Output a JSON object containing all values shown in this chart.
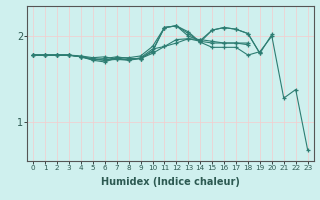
{
  "xlabel": "Humidex (Indice chaleur)",
  "ylabel": "",
  "bg_color": "#cff0ee",
  "grid_color": "#f5cccc",
  "line_color": "#2d7d72",
  "marker": "+",
  "xlim": [
    -0.5,
    23.5
  ],
  "ylim": [
    0.55,
    2.35
  ],
  "yticks": [
    1,
    2
  ],
  "xticks": [
    0,
    1,
    2,
    3,
    4,
    5,
    6,
    7,
    8,
    9,
    10,
    11,
    12,
    13,
    14,
    15,
    16,
    17,
    18,
    19,
    20,
    21,
    22,
    23
  ],
  "lines": [
    [
      1.78,
      1.78,
      1.78,
      1.78,
      1.76,
      1.73,
      1.72,
      1.75,
      1.75,
      1.77,
      1.88,
      2.1,
      2.12,
      2.05,
      1.93,
      1.87,
      1.87,
      1.87,
      1.78,
      1.82,
      2.0,
      1.28,
      1.38,
      0.68
    ],
    [
      1.78,
      1.78,
      1.78,
      1.78,
      1.76,
      1.73,
      1.74,
      1.76,
      1.74,
      1.74,
      1.82,
      2.1,
      2.12,
      2.0,
      1.95,
      2.07,
      2.1,
      2.08,
      2.03,
      1.8,
      2.02,
      null,
      null,
      null
    ],
    [
      1.78,
      1.78,
      1.78,
      1.78,
      1.76,
      1.72,
      1.7,
      1.75,
      1.72,
      1.75,
      1.85,
      1.88,
      1.92,
      1.97,
      1.94,
      1.92,
      1.92,
      1.92,
      1.92,
      null,
      null,
      null,
      null,
      null
    ],
    [
      1.78,
      1.78,
      1.78,
      1.78,
      1.77,
      1.75,
      1.76,
      1.73,
      1.73,
      1.74,
      1.83,
      2.1,
      2.12,
      2.03,
      1.93,
      2.07,
      2.1,
      2.08,
      2.03,
      1.8,
      null,
      null,
      null,
      null
    ],
    [
      1.78,
      1.78,
      1.78,
      1.78,
      1.76,
      1.74,
      1.72,
      1.73,
      1.72,
      1.74,
      1.8,
      1.88,
      1.96,
      1.97,
      1.96,
      1.94,
      1.92,
      1.92,
      1.9,
      null,
      null,
      null,
      null,
      null
    ]
  ]
}
